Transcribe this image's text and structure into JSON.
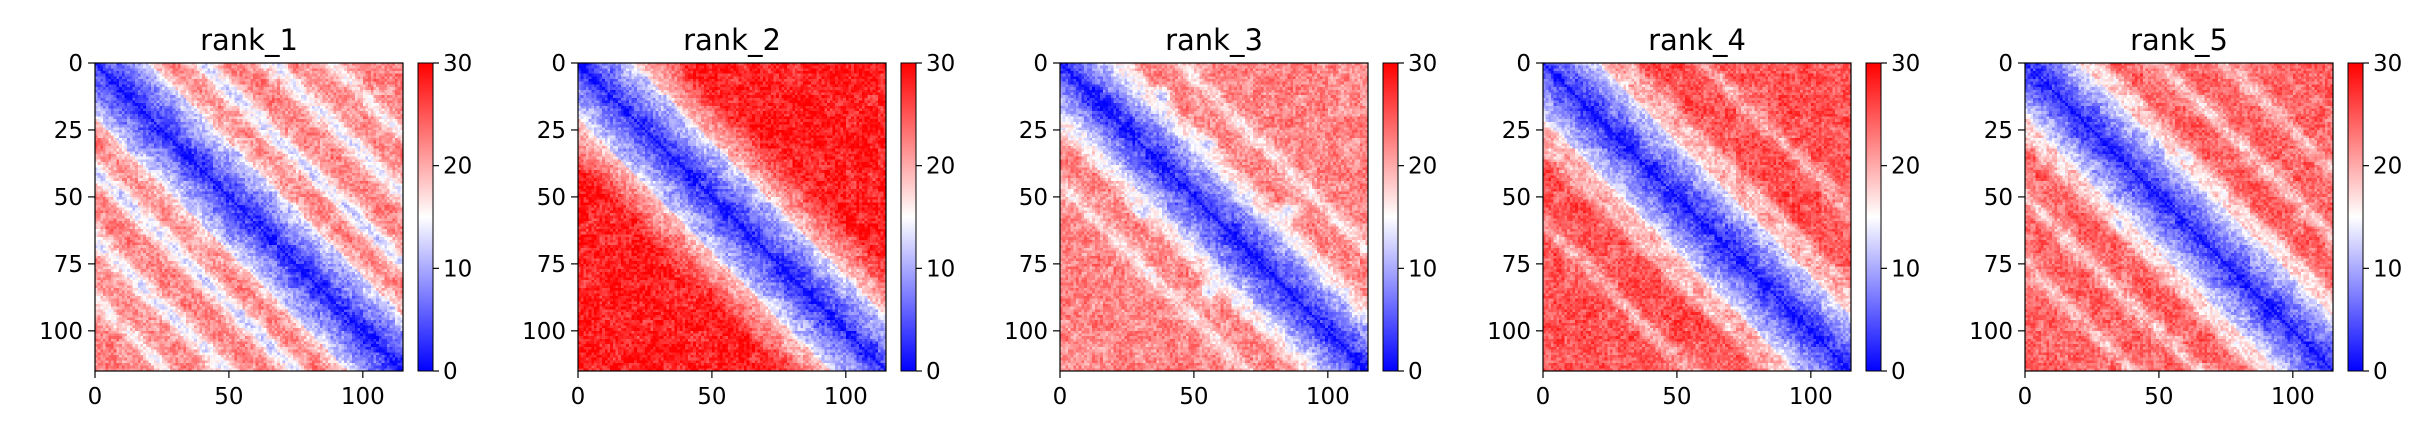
{
  "chart_data": {
    "type": "heatmap",
    "colormap": "bwr",
    "color_low": "#0000ff",
    "color_mid": "#ffffff",
    "color_high": "#ff0000",
    "grid": false,
    "panels": [
      {
        "title": "rank_1",
        "n": 115,
        "xticks": [
          0,
          50,
          100
        ],
        "yticks": [
          0,
          25,
          50,
          75,
          100
        ],
        "xlim": [
          0,
          115
        ],
        "ylim": [
          115,
          0
        ],
        "colorbar": {
          "min": 0,
          "max": 30,
          "ticks": [
            0,
            10,
            20,
            30
          ]
        },
        "background_level": 22,
        "bands": [
          {
            "offset": 40,
            "value": 13,
            "width": 3.5
          },
          {
            "offset": 66,
            "value": 14,
            "width": 3.5
          },
          {
            "offset": 88,
            "value": 16,
            "width": 3
          }
        ],
        "blobs": []
      },
      {
        "title": "rank_2",
        "n": 115,
        "xticks": [
          0,
          50,
          100
        ],
        "yticks": [
          0,
          25,
          50,
          75,
          100
        ],
        "xlim": [
          0,
          115
        ],
        "ylim": [
          115,
          0
        ],
        "colorbar": {
          "min": 0,
          "max": 30,
          "ticks": [
            0,
            10,
            20,
            30
          ]
        },
        "background_level": 28,
        "bands": [],
        "blobs": []
      },
      {
        "title": "rank_3",
        "n": 115,
        "xticks": [
          0,
          50,
          100
        ],
        "yticks": [
          0,
          25,
          50,
          75,
          100
        ],
        "xlim": [
          0,
          115
        ],
        "ylim": [
          115,
          0
        ],
        "colorbar": {
          "min": 0,
          "max": 30,
          "ticks": [
            0,
            10,
            20,
            30
          ]
        },
        "background_level": 22,
        "bands": [
          {
            "offset": 22,
            "value": 16,
            "width": 3
          },
          {
            "offset": 45,
            "value": 17,
            "width": 3
          }
        ],
        "blobs": [
          {
            "x": 38,
            "y": 12,
            "value": 12,
            "r": 2
          },
          {
            "x": 55,
            "y": 30,
            "value": 11,
            "r": 2
          },
          {
            "x": 30,
            "y": 55,
            "value": 11,
            "r": 2
          },
          {
            "x": 85,
            "y": 55,
            "value": 12,
            "r": 2
          },
          {
            "x": 55,
            "y": 85,
            "value": 12,
            "r": 2
          }
        ]
      },
      {
        "title": "rank_4",
        "n": 115,
        "xticks": [
          0,
          50,
          100
        ],
        "yticks": [
          0,
          25,
          50,
          75,
          100
        ],
        "xlim": [
          0,
          115
        ],
        "ylim": [
          115,
          0
        ],
        "colorbar": {
          "min": 0,
          "max": 30,
          "ticks": [
            0,
            10,
            20,
            30
          ]
        },
        "background_level": 25,
        "bands": [
          {
            "offset": 30,
            "value": 19,
            "width": 3
          },
          {
            "offset": 60,
            "value": 20,
            "width": 3
          }
        ],
        "blobs": []
      },
      {
        "title": "rank_5",
        "n": 115,
        "xticks": [
          0,
          50,
          100
        ],
        "yticks": [
          0,
          25,
          50,
          75,
          100
        ],
        "xlim": [
          0,
          115
        ],
        "ylim": [
          115,
          0
        ],
        "colorbar": {
          "min": 0,
          "max": 30,
          "ticks": [
            0,
            10,
            20,
            30
          ]
        },
        "background_level": 24,
        "bands": [
          {
            "offset": 25,
            "value": 17,
            "width": 3
          },
          {
            "offset": 50,
            "value": 18,
            "width": 3
          },
          {
            "offset": 75,
            "value": 19,
            "width": 3
          }
        ],
        "blobs": [
          {
            "x": 60,
            "y": 35,
            "value": 12,
            "r": 1.5
          },
          {
            "x": 35,
            "y": 60,
            "value": 12,
            "r": 1.5
          }
        ]
      }
    ]
  }
}
